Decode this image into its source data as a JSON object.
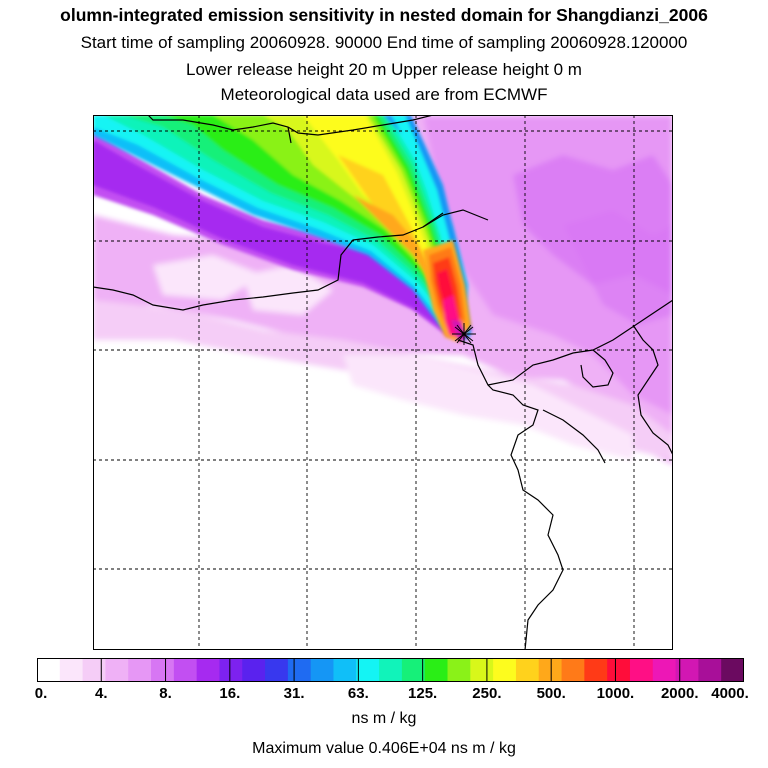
{
  "title": {
    "line1": "olumn-integrated emission sensitivity in nested domain for Shangdianzi_2006",
    "line2": "Start time of sampling 20060928. 90000     End time of sampling 20060928.120000",
    "line3": "Lower release height   20 m           Upper release height    0 m",
    "line4": "Meteorological data used are from ECMWF"
  },
  "colorbar": {
    "colors": [
      "#ffffff",
      "#fbe6fb",
      "#f5cdf7",
      "#efb1f6",
      "#e697f5",
      "#d776f3",
      "#c24ff2",
      "#a62af0",
      "#7d22ef",
      "#5a22ee",
      "#3838ee",
      "#1f6bf2",
      "#1596f5",
      "#10bff8",
      "#14f4f4",
      "#11f3ba",
      "#16f079",
      "#2aee16",
      "#8af218",
      "#d8f71a",
      "#fdfc1e",
      "#ffd21c",
      "#ffa81a",
      "#ff7a18",
      "#ff3a17",
      "#ff0d3a",
      "#ff0f85",
      "#ed17b6",
      "#d217b3",
      "#a80f99",
      "#6b0a60"
    ],
    "tick_labels": [
      "0.",
      "4.",
      "8.",
      "16.",
      "31.",
      "63.",
      "125.",
      "250.",
      "500.",
      "1000.",
      "2000.",
      "4000."
    ],
    "unit": "ns m / kg"
  },
  "max_value_text": "Maximum value  0.406E+04 ns m / kg",
  "map": {
    "receptor_name": "Shangdianzi",
    "background_color": "#ffffff",
    "land_border_color": "#000000"
  }
}
